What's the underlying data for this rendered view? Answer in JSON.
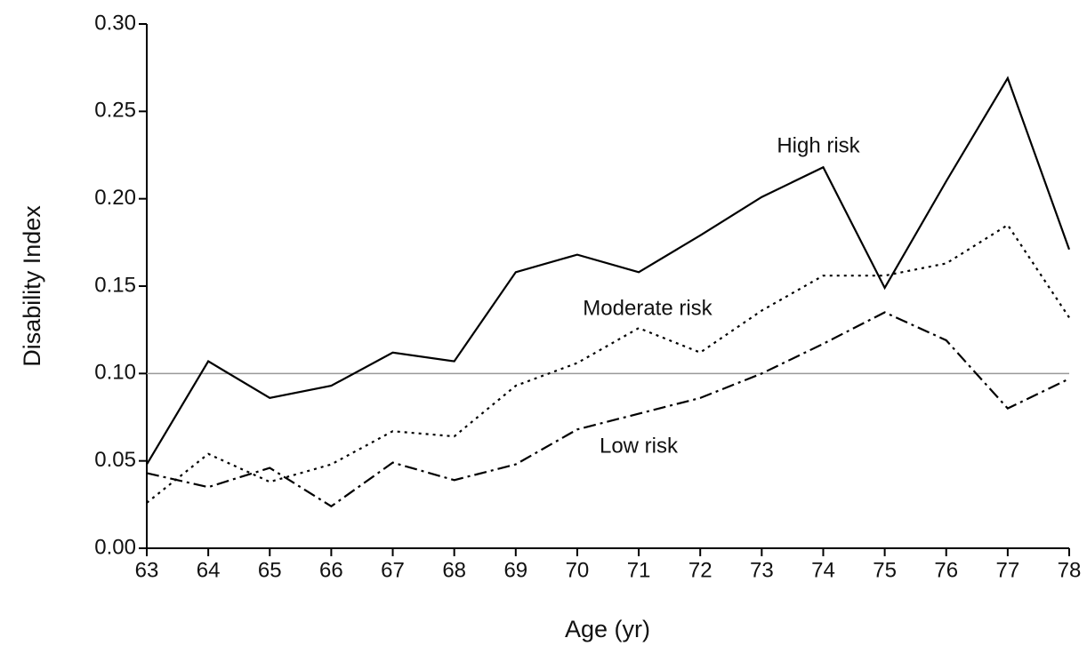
{
  "chart_data": {
    "type": "line",
    "x_label": "Age (yr)",
    "y_label": "Disability Index",
    "x": [
      63,
      64,
      65,
      66,
      67,
      68,
      69,
      70,
      71,
      72,
      73,
      74,
      75,
      76,
      77,
      78
    ],
    "series": [
      {
        "name": "High risk",
        "color": "#000000",
        "dash": "solid",
        "values": [
          0.048,
          0.107,
          0.086,
          0.093,
          0.112,
          0.107,
          0.158,
          0.168,
          0.158,
          0.179,
          0.201,
          0.218,
          0.149,
          0.21,
          0.269,
          0.171
        ]
      },
      {
        "name": "Moderate risk",
        "color": "#000000",
        "dash": "dotted",
        "values": [
          0.026,
          0.054,
          0.038,
          0.048,
          0.067,
          0.064,
          0.093,
          0.106,
          0.126,
          0.112,
          0.136,
          0.156,
          0.156,
          0.163,
          0.185,
          0.132
        ]
      },
      {
        "name": "Low risk",
        "color": "#000000",
        "dash": "dashdot",
        "values": [
          0.043,
          0.035,
          0.046,
          0.024,
          0.049,
          0.039,
          0.048,
          0.068,
          0.077,
          0.086,
          0.1,
          0.117,
          0.135,
          0.119,
          0.08,
          0.097
        ]
      }
    ],
    "reference_line": 0.1,
    "reference_color": "#999999",
    "xlim": [
      63,
      78
    ],
    "xticks": [
      63,
      64,
      65,
      66,
      67,
      68,
      69,
      70,
      71,
      72,
      73,
      74,
      75,
      76,
      77,
      78
    ],
    "ylim": [
      0,
      0.3
    ],
    "yticks": [
      {
        "value": 0,
        "label": "0.00"
      },
      {
        "value": 0.05,
        "label": "0.05"
      },
      {
        "value": 0.1,
        "label": "0.10"
      },
      {
        "value": 0.15,
        "label": "0.15"
      },
      {
        "value": 0.2,
        "label": "0.20"
      },
      {
        "value": 0.25,
        "label": "0.25"
      },
      {
        "value": 0.3,
        "label": "0.30"
      }
    ],
    "grid": false
  }
}
